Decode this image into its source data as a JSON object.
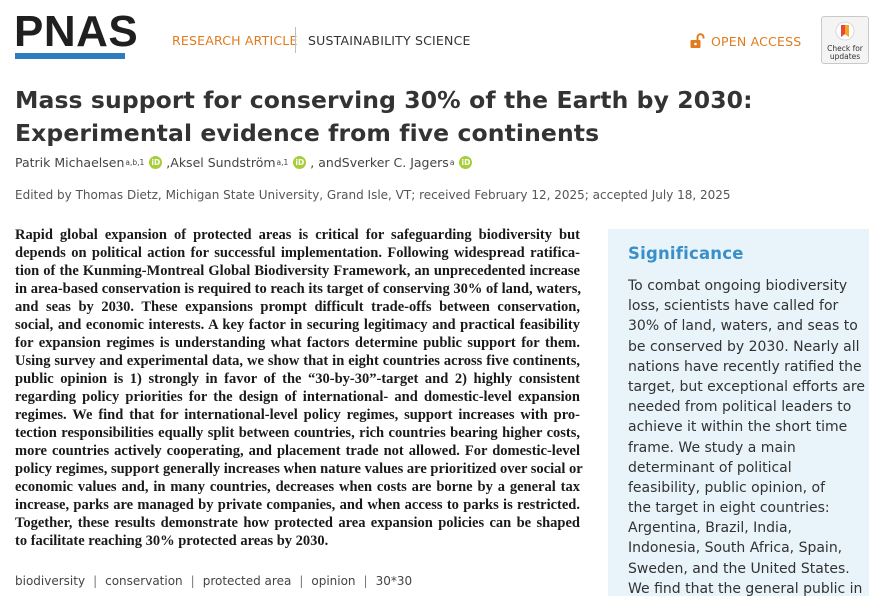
{
  "header": {
    "logo": "PNAS",
    "article_type": "RESEARCH ARTICLE",
    "section": "SUSTAINABILITY SCIENCE",
    "open_access": "OPEN ACCESS",
    "check_updates": [
      "Check for",
      "updates"
    ]
  },
  "title_lines": [
    "Mass support for conserving 30% of the Earth by 2030:",
    "Experimental evidence from five continents"
  ],
  "authors": [
    {
      "name": "Patrik Michaelsen",
      "aff": "a,b,1"
    },
    {
      "name": "Aksel Sundström",
      "aff": "a,1"
    },
    {
      "name": "Sverker C. Jagers",
      "aff": "a"
    }
  ],
  "author_separators": [
    ", ",
    ", and "
  ],
  "orcid_label": "iD",
  "edited_by": "Edited by Thomas Dietz, Michigan State University, Grand Isle, VT; received February 12, 2025; accepted July 18, 2025",
  "abstract_lines": [
    "Rapid global expansion of protected areas is critical for safeguarding biodiversity but",
    "depends on political action for successful implementation. Following widespread ratifica-",
    "tion of the Kunming-Montreal Global Biodiversity Framework, an unprecedented increase",
    "in area-based conservation is required to reach its target of conserving 30% of land, waters,",
    "and seas by 2030. These expansions prompt difficult trade-offs between conservation,",
    "social, and economic interests. A key factor in securing legitimacy and practical feasibility",
    "for expansion regimes is understanding what factors determine public support for them.",
    "Using survey and experimental data, we show that in eight countries across five continents,",
    "public opinion is 1) strongly in favor of the “30-by-30”-target and 2) highly consistent",
    "regarding policy priorities for the design of international- and domestic-level expansion",
    "regimes. We find that for international-level policy regimes, support increases with pro-",
    "tection responsibilities equally split between countries, rich countries bearing higher costs,",
    "more countries actively cooperating, and placement trade not allowed. For domestic-level",
    "policy regimes, support generally increases when nature values are prioritized over social or",
    "economic values and, in many countries, decreases when costs are borne by a general tax",
    "increase, parks are managed by private companies, and when access to parks is restricted.",
    "Together, these results demonstrate how protected area expansion policies can be shaped",
    "to facilitate reaching 30% protected areas by 2030."
  ],
  "keywords": [
    "biodiversity",
    "conservation",
    "protected area",
    "opinion",
    "30*30"
  ],
  "keyword_separator": "|",
  "significance": {
    "heading": "Significance",
    "lines": [
      "To combat ongoing biodiversity",
      "loss, scientists have called for",
      "30% of land, waters, and seas to",
      "be conserved by 2030. Nearly all",
      "nations have recently ratified the",
      "target, but exceptional efforts are",
      "needed from political leaders to",
      "achieve it within the short time",
      "frame. We study a main",
      "determinant of political",
      "feasibility, public opinion, of",
      "the target in eight countries:",
      "Argentina, Brazil, India,",
      "Indonesia, South Africa, Spain,",
      "Sweden, and the United States.",
      "We find that the general public in"
    ]
  },
  "colors": {
    "accent_orange": "#e07b1e",
    "brand_blue": "#2e7bbd",
    "significance_bg": "#e8f3fa",
    "significance_heading": "#3a8fc9",
    "orcid_green": "#a6ce39"
  }
}
